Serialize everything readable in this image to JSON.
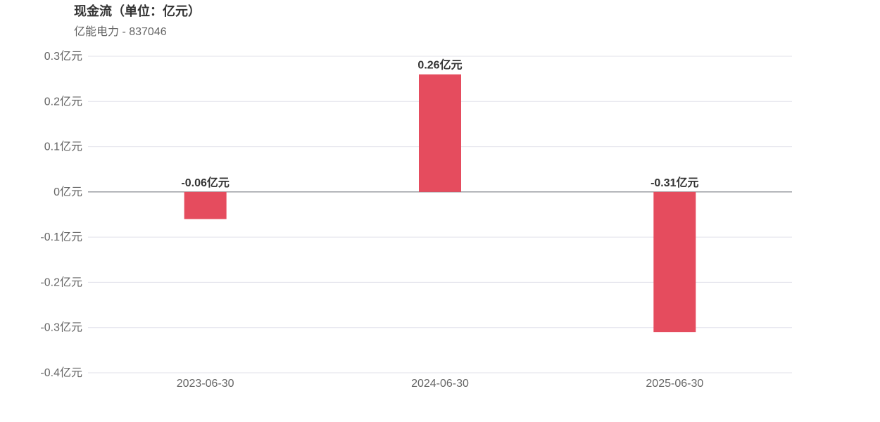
{
  "title": "现金流（单位：亿元）",
  "subtitle": "亿能电力 - 837046",
  "colors": {
    "bar": "#e54c5e",
    "grid": "#e0e0ea",
    "zero_line": "#6e7079",
    "tick_text": "#666666",
    "label_text": "#333333"
  },
  "chart_data": {
    "type": "bar",
    "title": "现金流（单位：亿元）",
    "subtitle": "亿能电力 - 837046",
    "categories": [
      "2023-06-30",
      "2024-06-30",
      "2025-06-30"
    ],
    "values": [
      -0.06,
      0.26,
      -0.31
    ],
    "data_labels": [
      "-0.06亿元",
      "0.26亿元",
      "-0.31亿元"
    ],
    "ylim": [
      -0.4,
      0.3
    ],
    "yticks": [
      0.3,
      0.2,
      0.1,
      0,
      -0.1,
      -0.2,
      -0.3,
      -0.4
    ],
    "ytick_labels": [
      "0.3亿元",
      "0.2亿元",
      "0.1亿元",
      "0亿元",
      "-0.1亿元",
      "-0.2亿元",
      "-0.3亿元",
      "-0.4亿元"
    ],
    "grid": true,
    "legend": "none",
    "xlabel": "",
    "ylabel": ""
  }
}
